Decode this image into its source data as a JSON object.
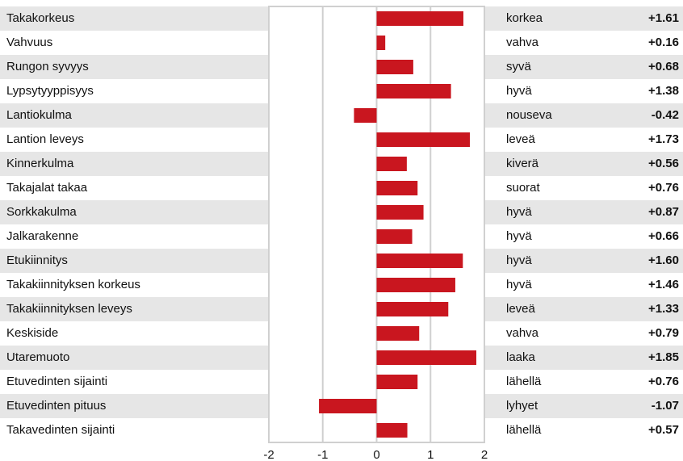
{
  "chart_data": {
    "type": "bar",
    "orientation": "horizontal",
    "categories": [
      "Takakorkeus",
      "Vahvuus",
      "Rungon syvyys",
      "Lypsytyyppisyys",
      "Lantiokulma",
      "Lantion leveys",
      "Kinnerkulma",
      "Takajalat takaa",
      "Sorkkakulma",
      "Jalkarakenne",
      "Etukiinnitys",
      "Takakiinnityksen korkeus",
      "Takakiinnityksen leveys",
      "Keskiside",
      "Utaremuoto",
      "Etuvedinten sijainti",
      "Etuvedinten pituus",
      "Takavedinten sijainti"
    ],
    "descriptions": [
      "korkea",
      "vahva",
      "syvä",
      "hyvä",
      "nouseva",
      "leveä",
      "kiverä",
      "suorat",
      "hyvä",
      "hyvä",
      "hyvä",
      "hyvä",
      "leveä",
      "vahva",
      "laaka",
      "lähellä",
      "lyhyet",
      "lähellä"
    ],
    "values": [
      1.61,
      0.16,
      0.68,
      1.38,
      -0.42,
      1.73,
      0.56,
      0.76,
      0.87,
      0.66,
      1.6,
      1.46,
      1.33,
      0.79,
      1.85,
      0.76,
      -1.07,
      0.57
    ],
    "value_labels": [
      "+1.61",
      "+0.16",
      "+0.68",
      "+1.38",
      "-0.42",
      "+1.73",
      "+0.56",
      "+0.76",
      "+0.87",
      "+0.66",
      "+1.60",
      "+1.46",
      "+1.33",
      "+0.79",
      "+1.85",
      "+0.76",
      "-1.07",
      "+0.57"
    ],
    "color": "#c9161f",
    "xlim": [
      -2,
      2
    ],
    "xticks": [
      -2,
      -1,
      0,
      1,
      2
    ],
    "grid": true
  }
}
